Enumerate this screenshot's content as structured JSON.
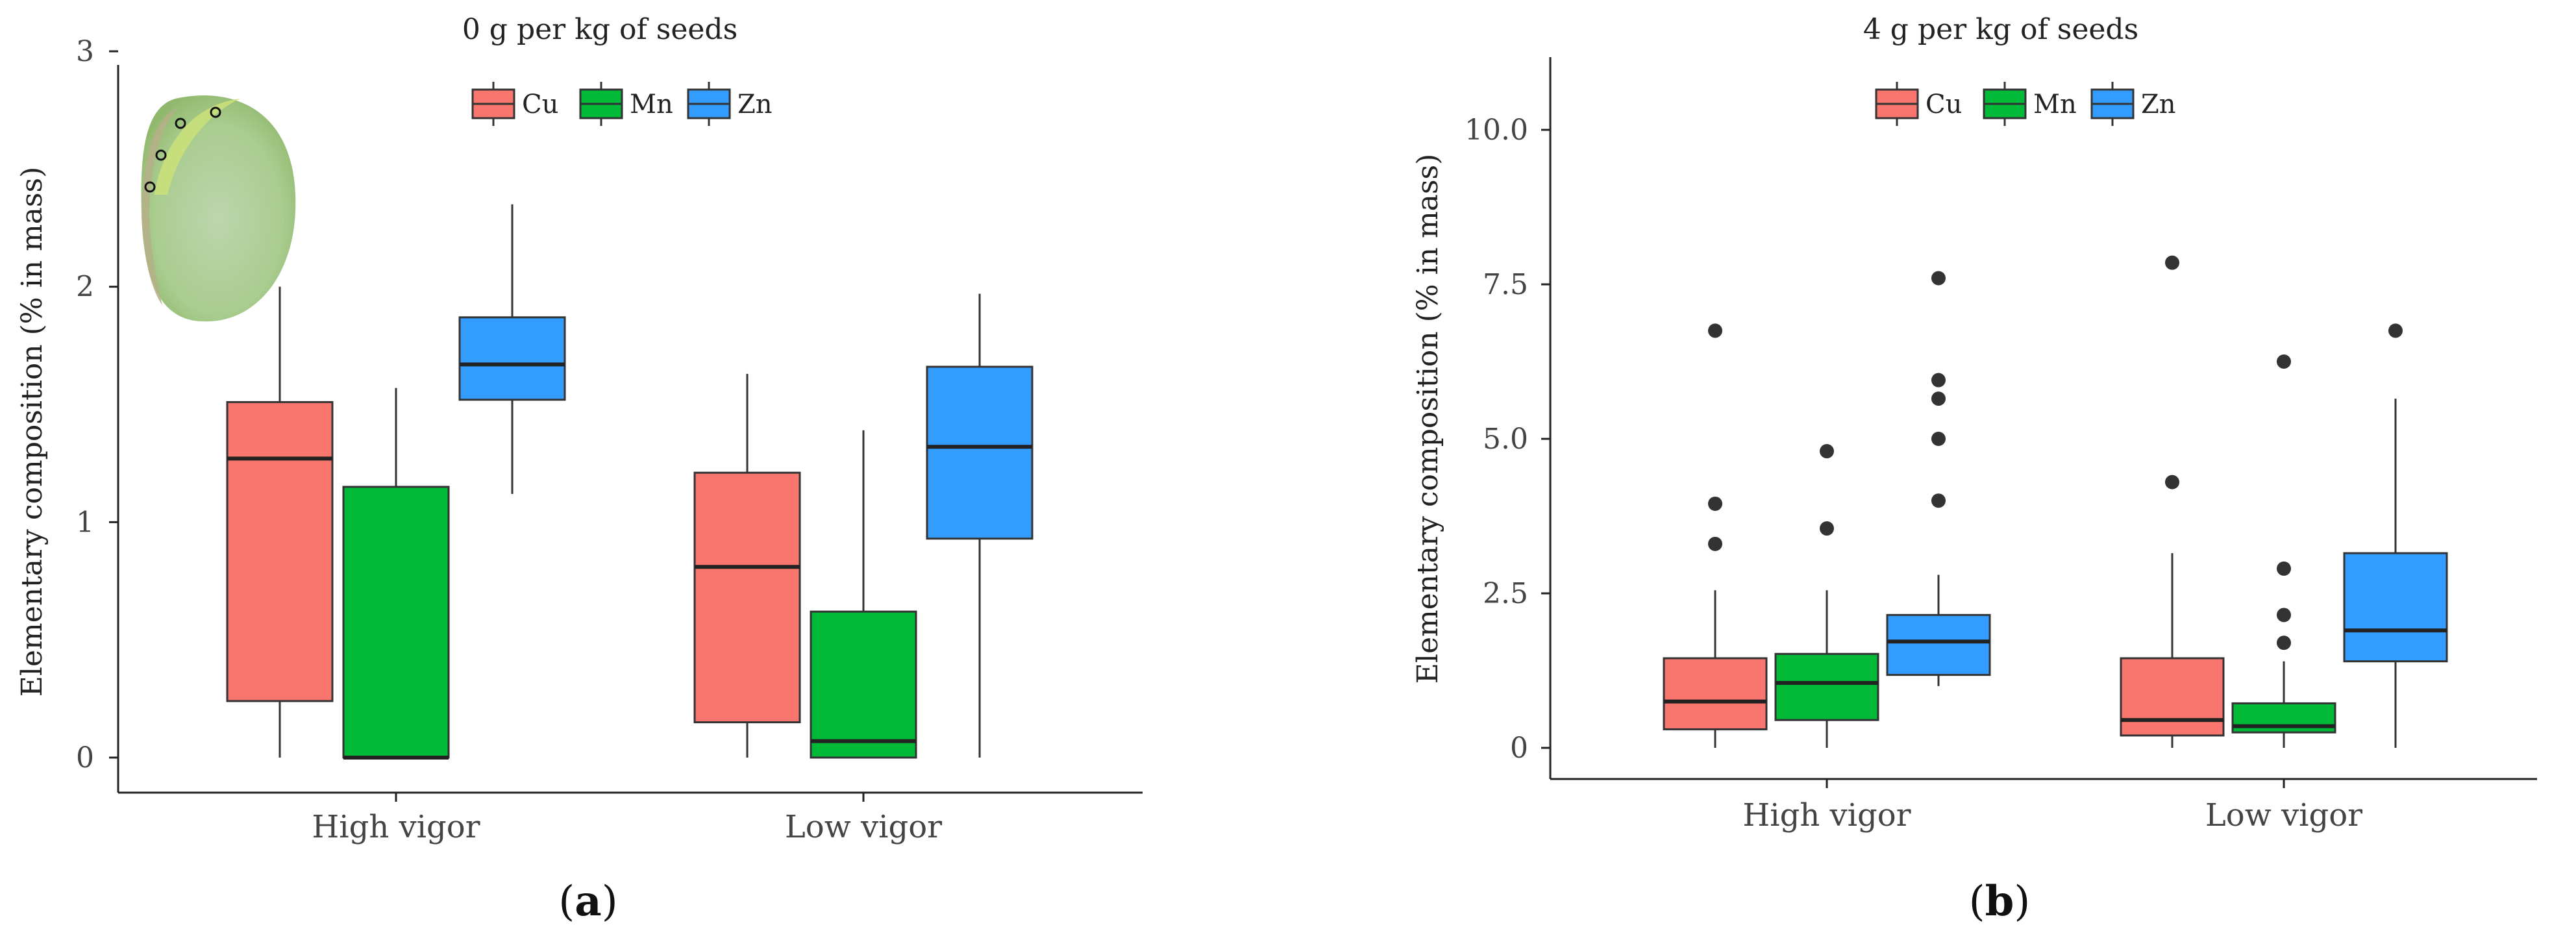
{
  "chart_data": [
    {
      "panel_label": "(a)",
      "type": "boxplot",
      "title": "0 g per kg of seeds",
      "ylabel": "Elementary composition (% in mass)",
      "xlabel": "",
      "ylim": [
        0,
        3.15
      ],
      "yticks": [
        "0",
        "1",
        "2",
        "3"
      ],
      "ytick_values": [
        0,
        1,
        2,
        3
      ],
      "categories": [
        "High vigor",
        "Low vigor"
      ],
      "legend": [
        "Cu",
        "Mn",
        "Zn"
      ],
      "colors": {
        "Cu": "#F8766D",
        "Mn": "#00BA38",
        "Zn": "#339CFF"
      },
      "boxes": [
        {
          "category": "High vigor",
          "series": "Cu",
          "min": 0.0,
          "q1": 0.24,
          "median": 1.27,
          "q3": 1.51,
          "max": 2.0,
          "outliers": []
        },
        {
          "category": "High vigor",
          "series": "Mn",
          "min": 0.0,
          "q1": 0.0,
          "median": 0.0,
          "q3": 1.15,
          "max": 1.57,
          "outliers": []
        },
        {
          "category": "High vigor",
          "series": "Zn",
          "min": 1.12,
          "q1": 1.52,
          "median": 1.67,
          "q3": 1.87,
          "max": 2.35,
          "outliers": []
        },
        {
          "category": "Low vigor",
          "series": "Cu",
          "min": 0.0,
          "q1": 0.15,
          "median": 0.81,
          "q3": 1.21,
          "max": 1.63,
          "outliers": []
        },
        {
          "category": "Low vigor",
          "series": "Mn",
          "min": 0.0,
          "q1": 0.0,
          "median": 0.07,
          "q3": 0.62,
          "max": 1.39,
          "outliers": []
        },
        {
          "category": "Low vigor",
          "series": "Zn",
          "min": 0.0,
          "q1": 0.93,
          "median": 1.32,
          "q3": 1.66,
          "max": 1.97,
          "outliers": []
        }
      ],
      "inset_image": "seed-photo"
    },
    {
      "panel_label": "(b)",
      "type": "boxplot",
      "title": "4 g per kg of seeds",
      "ylabel": "Elementary composition (% in mass)",
      "xlabel": "",
      "ylim": [
        0,
        10.6
      ],
      "yticks": [
        "0",
        "2.5",
        "5.0",
        "7.5",
        "10.0"
      ],
      "ytick_values": [
        0,
        2.5,
        5.0,
        7.5,
        10.0
      ],
      "categories": [
        "High vigor",
        "Low vigor"
      ],
      "legend": [
        "Cu",
        "Mn",
        "Zn"
      ],
      "colors": {
        "Cu": "#F8766D",
        "Mn": "#00BA38",
        "Zn": "#339CFF"
      },
      "boxes": [
        {
          "category": "High vigor",
          "series": "Cu",
          "min": 0.0,
          "q1": 0.3,
          "median": 0.75,
          "q3": 1.45,
          "max": 2.55,
          "outliers": [
            3.3,
            3.95,
            6.75
          ]
        },
        {
          "category": "High vigor",
          "series": "Mn",
          "min": 0.0,
          "q1": 0.45,
          "median": 1.05,
          "q3": 1.52,
          "max": 2.55,
          "outliers": [
            3.55,
            4.8
          ]
        },
        {
          "category": "High vigor",
          "series": "Zn",
          "min": 1.0,
          "q1": 1.18,
          "median": 1.72,
          "q3": 2.15,
          "max": 2.8,
          "outliers": [
            4.0,
            5.0,
            5.65,
            5.95,
            7.6
          ]
        },
        {
          "category": "Low vigor",
          "series": "Cu",
          "min": 0.0,
          "q1": 0.2,
          "median": 0.45,
          "q3": 1.45,
          "max": 3.15,
          "outliers": [
            4.3,
            7.85
          ]
        },
        {
          "category": "Low vigor",
          "series": "Mn",
          "min": 0.0,
          "q1": 0.25,
          "median": 0.35,
          "q3": 0.72,
          "max": 1.4,
          "outliers": [
            1.7,
            2.15,
            2.9,
            6.25
          ]
        },
        {
          "category": "Low vigor",
          "series": "Zn",
          "min": 0.0,
          "q1": 1.4,
          "median": 1.9,
          "q3": 3.15,
          "max": 5.65,
          "outliers": [
            6.75
          ]
        }
      ]
    }
  ]
}
